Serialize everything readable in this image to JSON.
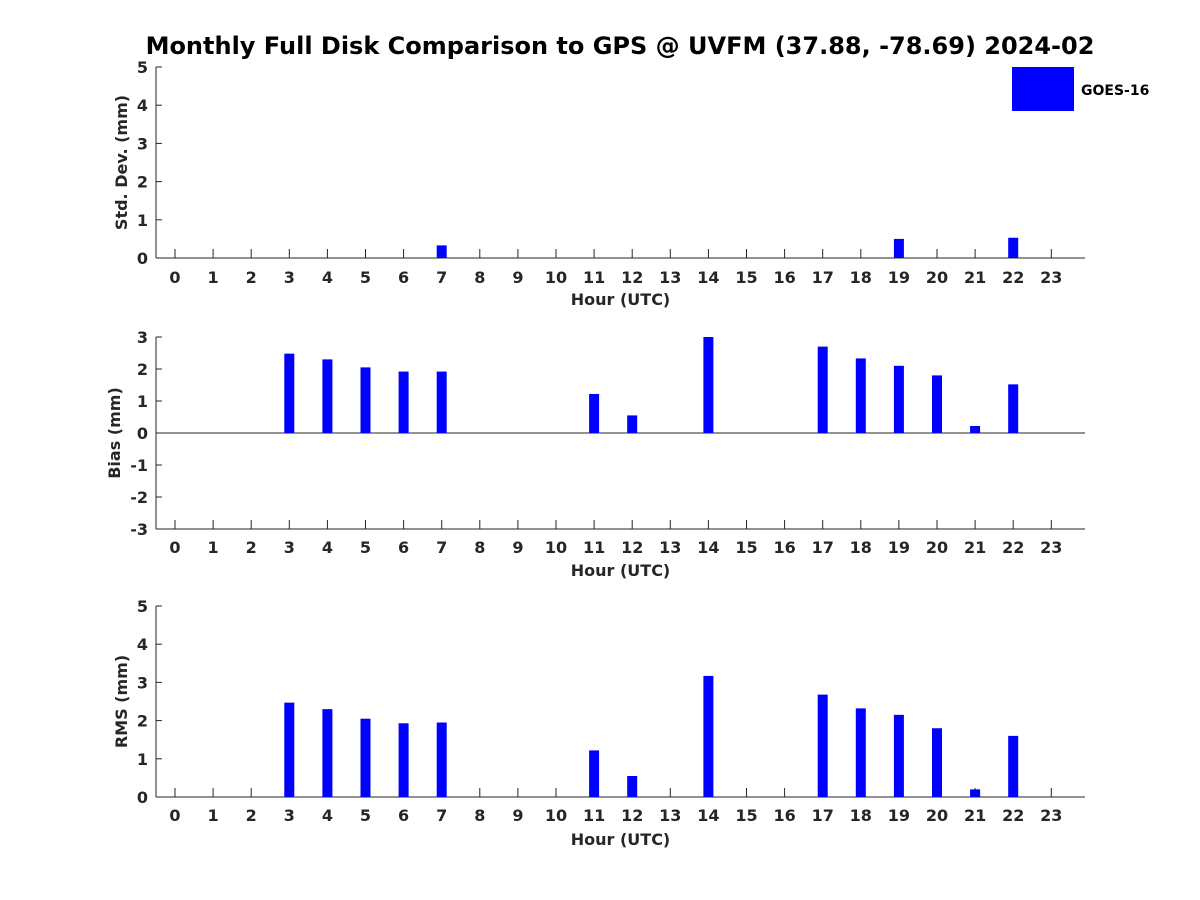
{
  "chart_data": {
    "title": "Monthly Full Disk Comparison to GPS @ UVFM (37.88, -78.69) 2024-02",
    "colors": {
      "bar": "#0000ff",
      "axis": "#262626",
      "background": "#ffffff"
    },
    "legend": {
      "label": "GOES-16",
      "placement": "top-right"
    },
    "panels": [
      {
        "id": "std",
        "type": "bar",
        "ylabel": "Std. Dev. (mm)",
        "xlabel": "Hour (UTC)",
        "ylim": [
          0,
          5
        ],
        "yticks": [
          0,
          1,
          2,
          3,
          4,
          5
        ],
        "categories": [
          0,
          1,
          2,
          3,
          4,
          5,
          6,
          7,
          8,
          9,
          10,
          11,
          12,
          13,
          14,
          15,
          16,
          17,
          18,
          19,
          20,
          21,
          22,
          23
        ],
        "values": [
          null,
          null,
          null,
          0,
          0,
          0,
          0,
          0.33,
          null,
          null,
          null,
          0,
          0,
          null,
          0,
          null,
          null,
          0,
          0,
          0.5,
          0,
          0,
          0.53,
          null
        ]
      },
      {
        "id": "bias",
        "type": "bar",
        "ylabel": "Bias (mm)",
        "xlabel": "Hour (UTC)",
        "ylim": [
          -3,
          3
        ],
        "yticks": [
          -3,
          -2,
          -1,
          0,
          1,
          2,
          3
        ],
        "categories": [
          0,
          1,
          2,
          3,
          4,
          5,
          6,
          7,
          8,
          9,
          10,
          11,
          12,
          13,
          14,
          15,
          16,
          17,
          18,
          19,
          20,
          21,
          22,
          23
        ],
        "values": [
          null,
          null,
          null,
          2.48,
          2.3,
          2.05,
          1.92,
          1.92,
          null,
          null,
          null,
          1.22,
          0.55,
          null,
          3.0,
          null,
          null,
          2.7,
          2.33,
          2.1,
          1.8,
          0.22,
          1.52,
          null
        ]
      },
      {
        "id": "rms",
        "type": "bar",
        "ylabel": "RMS (mm)",
        "xlabel": "Hour (UTC)",
        "ylim": [
          0,
          5
        ],
        "yticks": [
          0,
          1,
          2,
          3,
          4,
          5
        ],
        "categories": [
          0,
          1,
          2,
          3,
          4,
          5,
          6,
          7,
          8,
          9,
          10,
          11,
          12,
          13,
          14,
          15,
          16,
          17,
          18,
          19,
          20,
          21,
          22,
          23
        ],
        "values": [
          null,
          null,
          null,
          2.47,
          2.3,
          2.05,
          1.93,
          1.95,
          null,
          null,
          null,
          1.22,
          0.55,
          null,
          3.17,
          null,
          null,
          2.68,
          2.32,
          2.15,
          1.8,
          0.2,
          1.6,
          null
        ]
      }
    ]
  }
}
